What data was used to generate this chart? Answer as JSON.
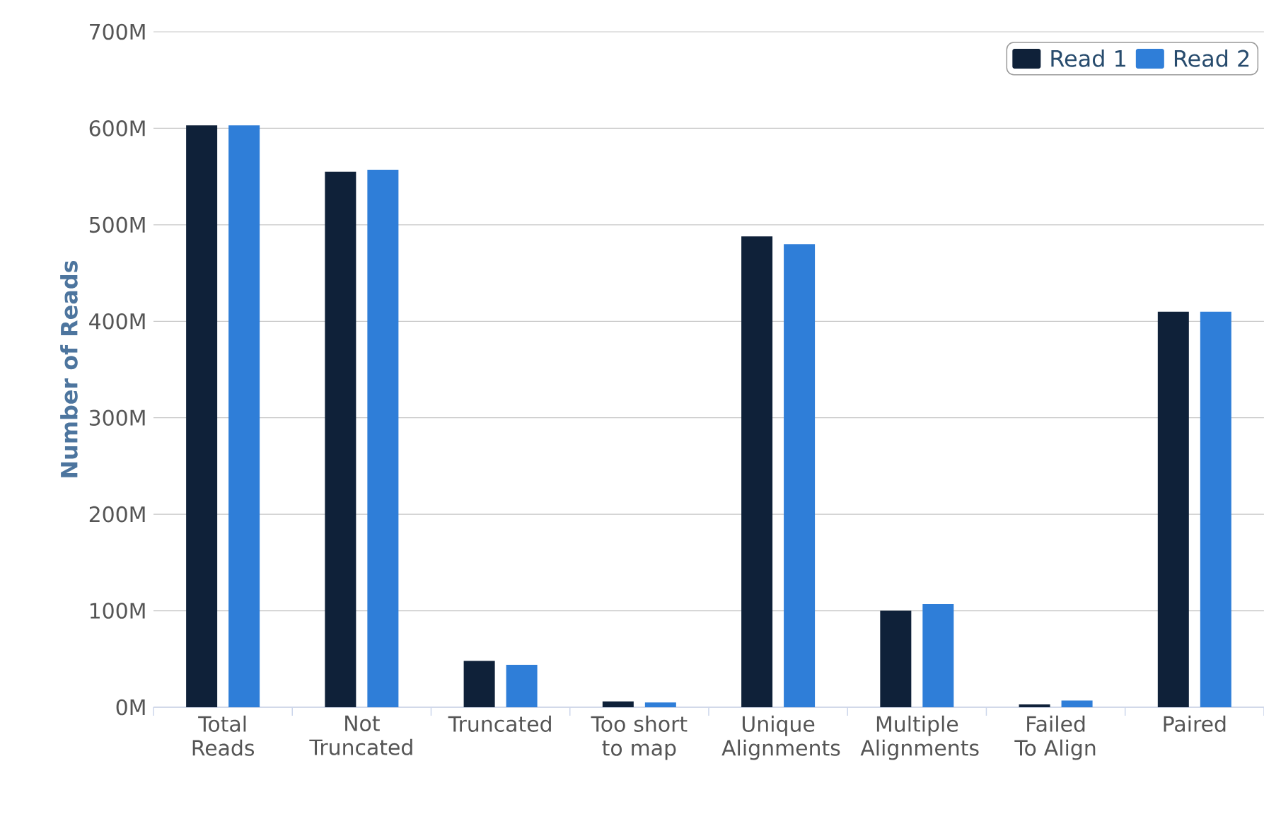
{
  "chart_data": {
    "type": "bar",
    "ylabel": "Number of Reads",
    "categories": [
      "Total Reads",
      "Not Truncated",
      "Truncated",
      "Too short to map",
      "Unique Alignments",
      "Multiple Alignments",
      "Failed To Align",
      "Paired"
    ],
    "series": [
      {
        "name": "Read 1",
        "color": "#0f2139",
        "values": [
          603,
          555,
          48,
          6,
          488,
          100,
          3,
          410
        ]
      },
      {
        "name": "Read 2",
        "color": "#2f7ed8",
        "values": [
          603,
          557,
          44,
          5,
          480,
          107,
          7,
          410
        ]
      }
    ],
    "ylim": [
      0,
      700
    ],
    "yticks": [
      {
        "value": 0,
        "label": "0M"
      },
      {
        "value": 100,
        "label": "100M"
      },
      {
        "value": 200,
        "label": "200M"
      },
      {
        "value": 300,
        "label": "300M"
      },
      {
        "value": 400,
        "label": "400M"
      },
      {
        "value": 500,
        "label": "500M"
      },
      {
        "value": 600,
        "label": "600M"
      },
      {
        "value": 700,
        "label": "700M"
      }
    ],
    "grid": "y",
    "legend": "top right"
  }
}
